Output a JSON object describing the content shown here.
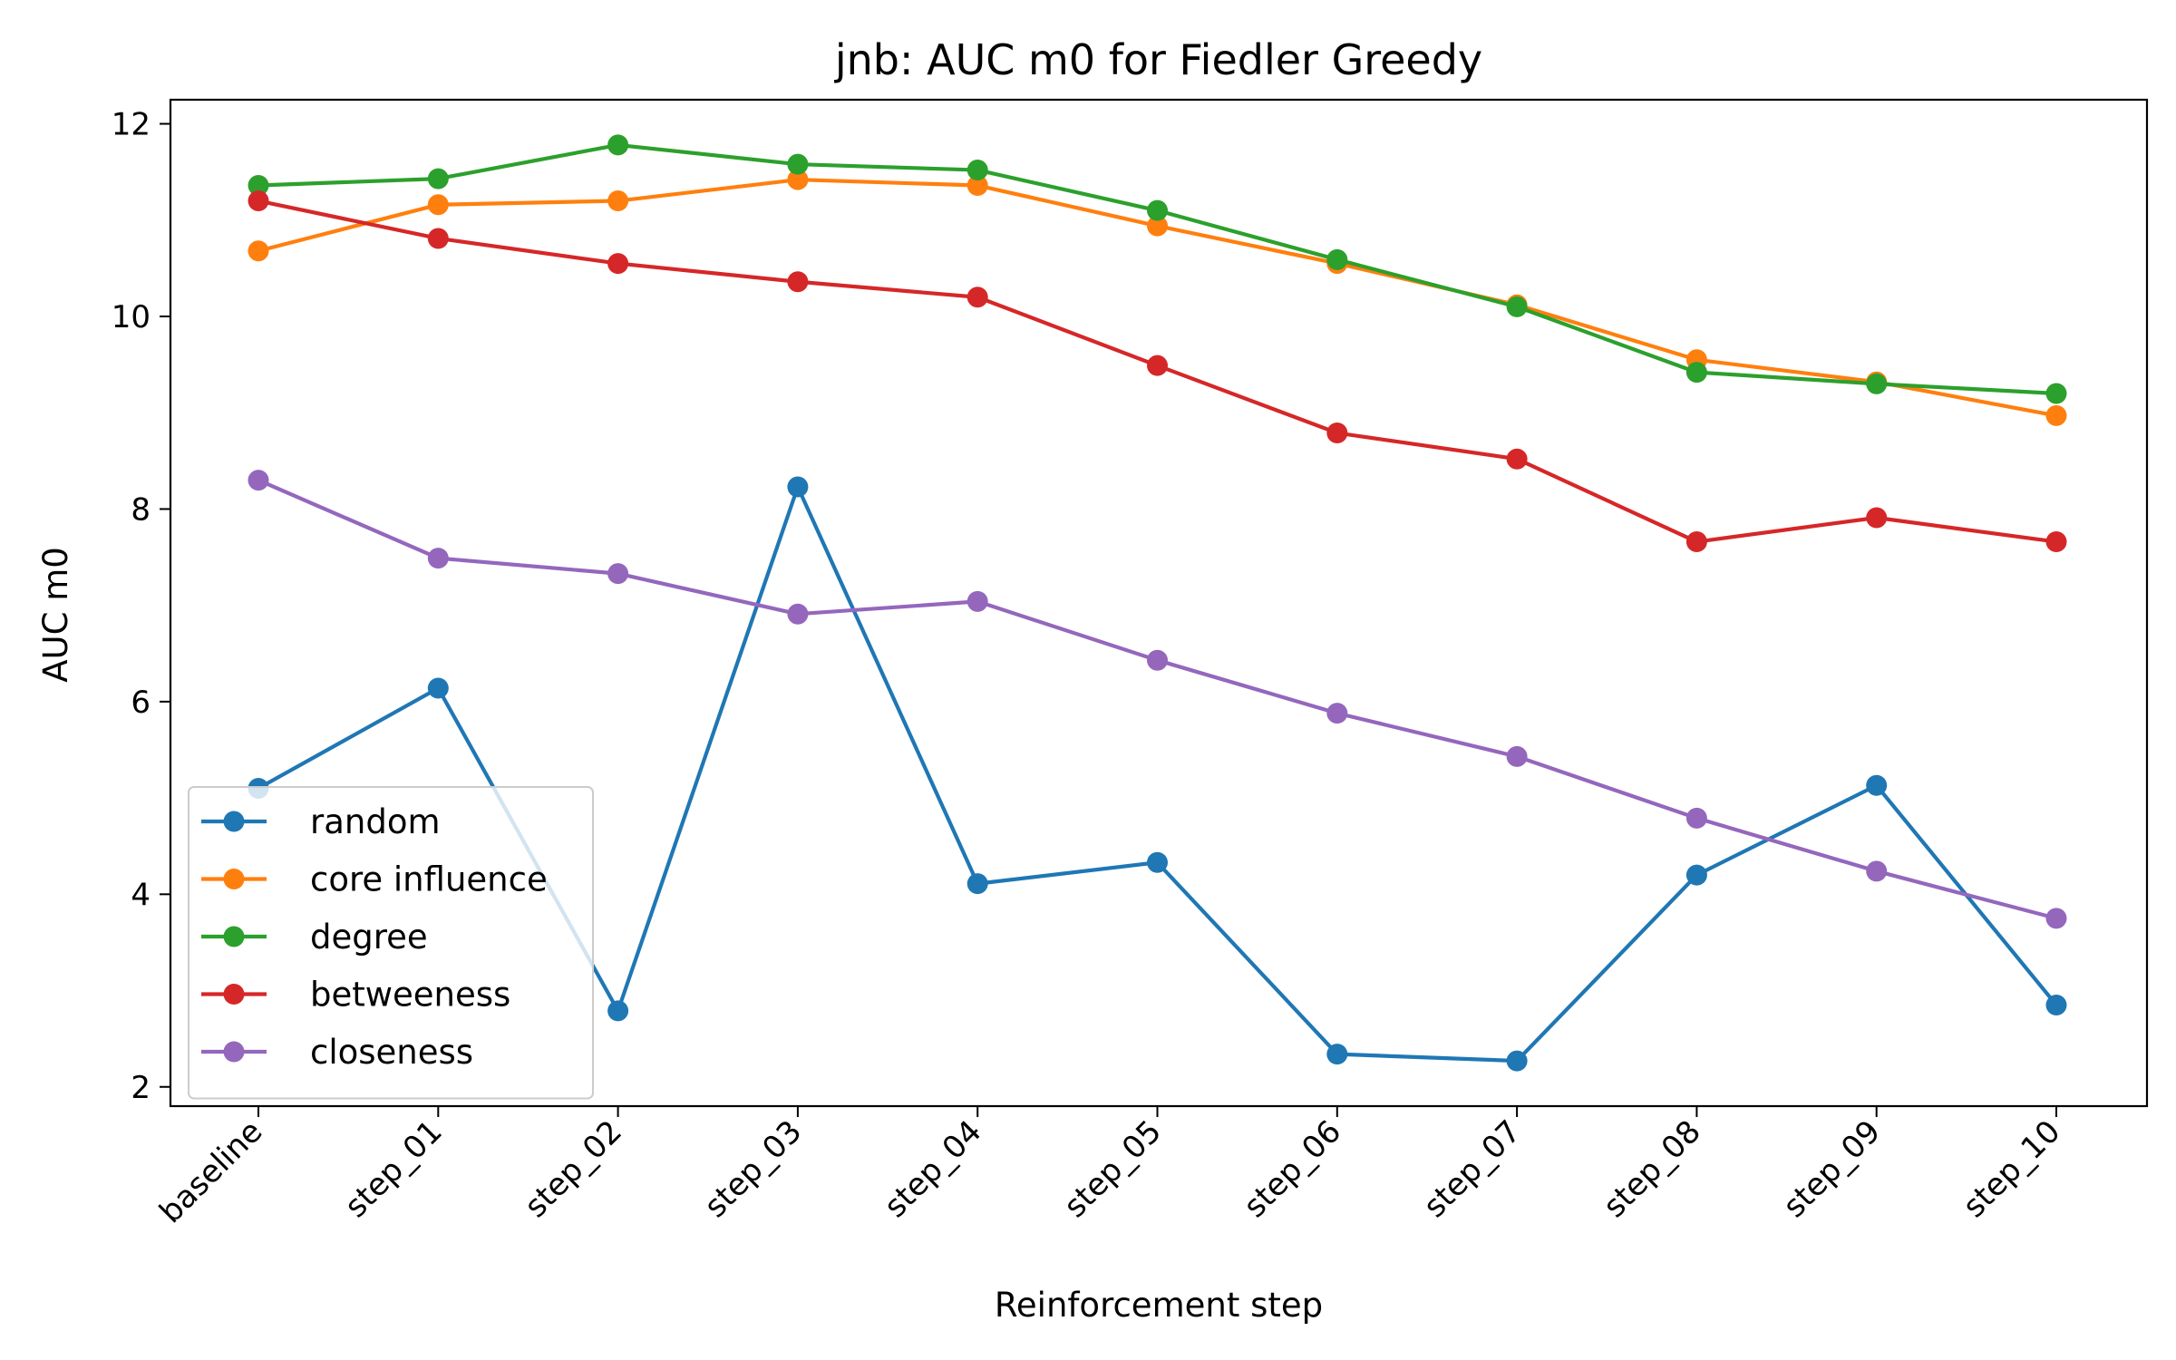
{
  "chart_data": {
    "type": "line",
    "title": "jnb: AUC m0 for Fiedler Greedy",
    "xlabel": "Reinforcement step",
    "ylabel": "AUC m0",
    "categories": [
      "baseline",
      "step_01",
      "step_02",
      "step_03",
      "step_04",
      "step_05",
      "step_06",
      "step_07",
      "step_08",
      "step_09",
      "step_10"
    ],
    "ylim": [
      1.8,
      12.25
    ],
    "yticks": [
      2,
      4,
      6,
      8,
      10,
      12
    ],
    "grid": false,
    "legend_position": "lower-left",
    "series": [
      {
        "name": "random",
        "color": "#1f77b4",
        "values": [
          5.1,
          6.14,
          2.79,
          8.23,
          4.11,
          4.33,
          2.34,
          2.27,
          4.2,
          5.13,
          2.85
        ]
      },
      {
        "name": "core influence",
        "color": "#ff7f0e",
        "values": [
          10.68,
          11.16,
          11.2,
          11.42,
          11.36,
          10.94,
          10.55,
          10.12,
          9.55,
          9.32,
          8.97
        ]
      },
      {
        "name": "degree",
        "color": "#2ca02c",
        "values": [
          11.36,
          11.43,
          11.78,
          11.58,
          11.52,
          11.1,
          10.59,
          10.1,
          9.42,
          9.3,
          9.2
        ]
      },
      {
        "name": "betweeness",
        "color": "#d62728",
        "values": [
          11.2,
          10.81,
          10.55,
          10.36,
          10.2,
          9.49,
          8.79,
          8.52,
          7.66,
          7.91,
          7.66
        ]
      },
      {
        "name": "closeness",
        "color": "#9467bd",
        "values": [
          8.3,
          7.49,
          7.33,
          6.91,
          7.04,
          6.43,
          5.88,
          5.43,
          4.79,
          4.24,
          3.75
        ]
      }
    ]
  }
}
